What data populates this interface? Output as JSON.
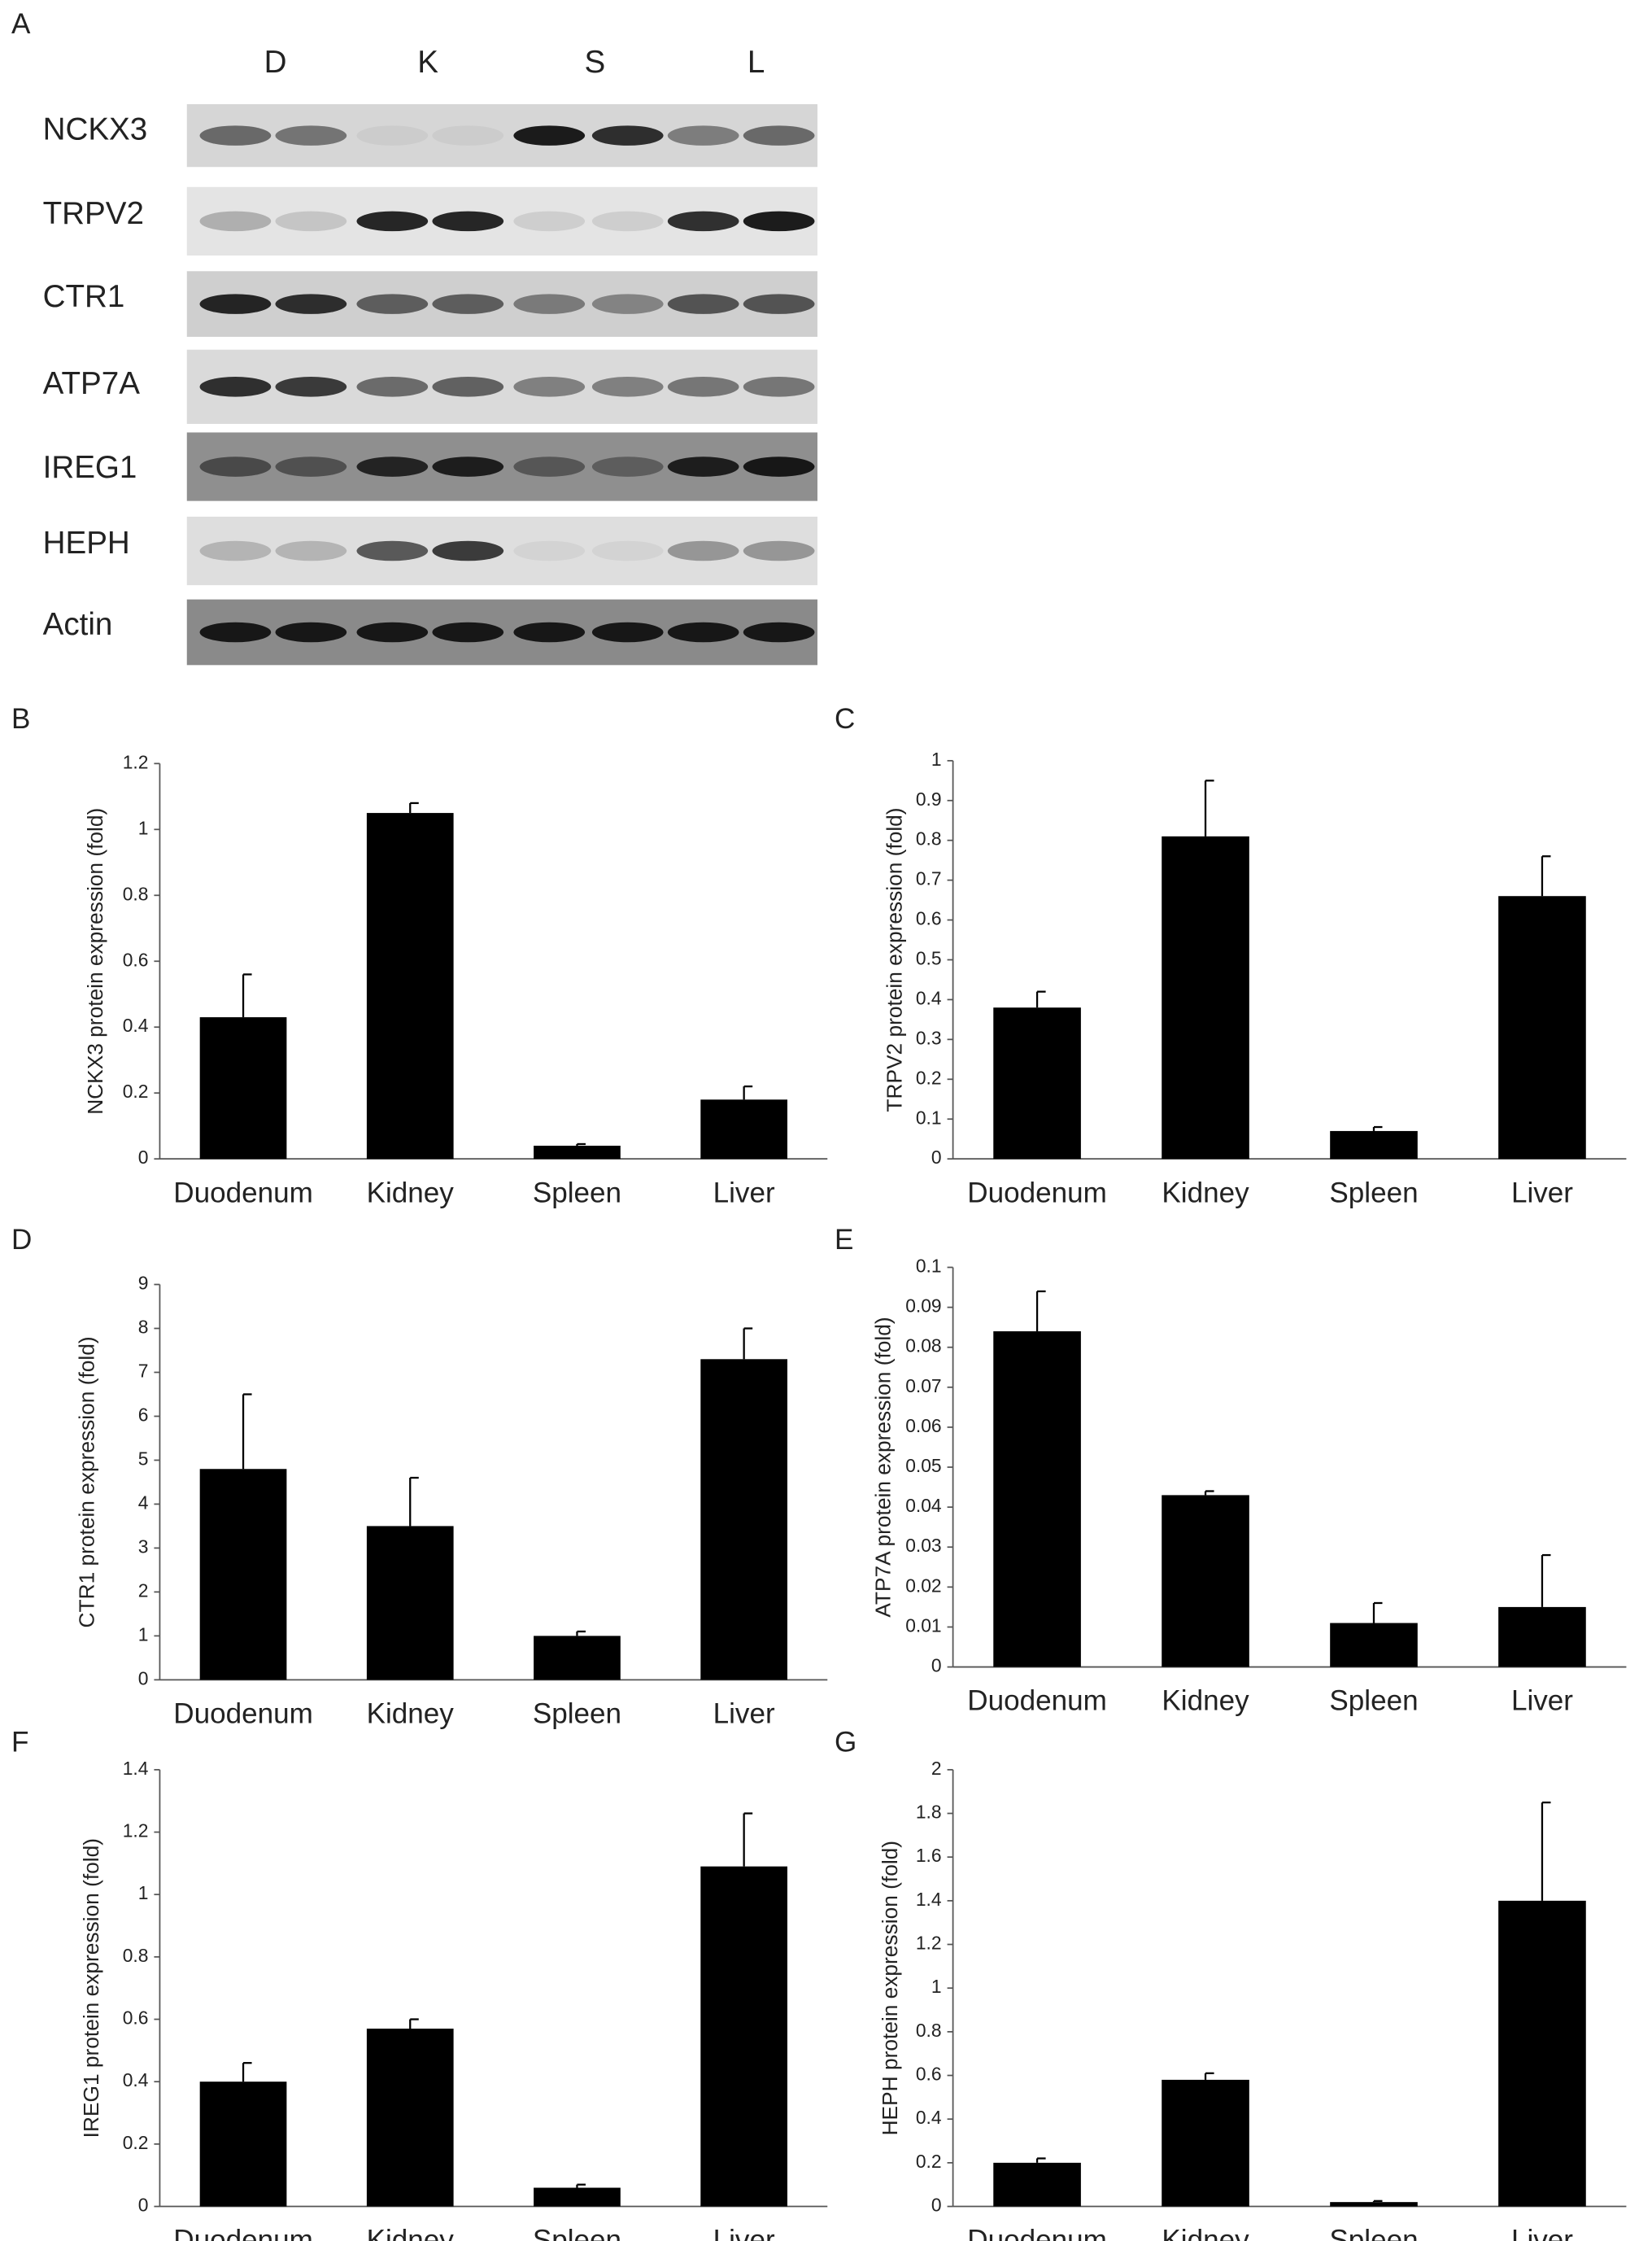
{
  "blot": {
    "panel": "A",
    "lanes": [
      "D",
      "K",
      "S",
      "L"
    ],
    "proteins": [
      "NCKX3",
      "TRPV2",
      "CTR1",
      "ATP7A",
      "IREG1",
      "HEPH",
      "Actin"
    ]
  },
  "chart_data": [
    {
      "type": "bar",
      "panel": "B",
      "y_label": "NCKX3 protein expression (fold)",
      "categories": [
        "Duodenum",
        "Kidney",
        "Spleen",
        "Liver"
      ],
      "values": [
        0.43,
        1.05,
        0.04,
        0.18
      ],
      "errors": [
        0.13,
        0.03,
        0.005,
        0.04
      ],
      "color": "#000000",
      "ylim": [
        0,
        1.2
      ],
      "yticks": [
        0,
        0.2,
        0.4,
        0.6,
        0.8,
        1,
        1.2
      ]
    },
    {
      "type": "bar",
      "panel": "C",
      "y_label": "TRPV2 protein expression (fold)",
      "categories": [
        "Duodenum",
        "Kidney",
        "Spleen",
        "Liver"
      ],
      "values": [
        0.38,
        0.81,
        0.07,
        0.66
      ],
      "errors": [
        0.04,
        0.14,
        0.01,
        0.1
      ],
      "color": "#000000",
      "ylim": [
        0,
        1
      ],
      "yticks": [
        0,
        0.1,
        0.2,
        0.3,
        0.4,
        0.5,
        0.6,
        0.7,
        0.8,
        0.9,
        1
      ]
    },
    {
      "type": "bar",
      "panel": "D",
      "y_label": "CTR1 protein expression (fold)",
      "categories": [
        "Duodenum",
        "Kidney",
        "Spleen",
        "Liver"
      ],
      "values": [
        4.8,
        3.5,
        1.0,
        7.3
      ],
      "errors": [
        1.7,
        1.1,
        0.1,
        0.7
      ],
      "color": "#000000",
      "ylim": [
        0,
        9
      ],
      "yticks": [
        0,
        1,
        2,
        3,
        4,
        5,
        6,
        7,
        8,
        9
      ]
    },
    {
      "type": "bar",
      "panel": "E",
      "y_label": "ATP7A protein expression (fold)",
      "categories": [
        "Duodenum",
        "Kidney",
        "Spleen",
        "Liver"
      ],
      "values": [
        0.084,
        0.043,
        0.011,
        0.015
      ],
      "errors": [
        0.01,
        0.001,
        0.005,
        0.013
      ],
      "color": "#000000",
      "ylim": [
        0,
        0.1
      ],
      "yticks": [
        0,
        0.01,
        0.02,
        0.03,
        0.04,
        0.05,
        0.06,
        0.07,
        0.08,
        0.09,
        0.1
      ]
    },
    {
      "type": "bar",
      "panel": "F",
      "y_label": "IREG1 protein expression (fold)",
      "categories": [
        "Duodenum",
        "Kidney",
        "Spleen",
        "Liver"
      ],
      "values": [
        0.4,
        0.57,
        0.06,
        1.09
      ],
      "errors": [
        0.06,
        0.03,
        0.01,
        0.17
      ],
      "color": "#000000",
      "ylim": [
        0,
        1.4
      ],
      "yticks": [
        0,
        0.2,
        0.4,
        0.6,
        0.8,
        1,
        1.2,
        1.4
      ]
    },
    {
      "type": "bar",
      "panel": "G",
      "y_label": "HEPH protein expression (fold)",
      "categories": [
        "Duodenum",
        "Kidney",
        "Spleen",
        "Liver"
      ],
      "values": [
        0.2,
        0.58,
        0.02,
        1.4
      ],
      "errors": [
        0.02,
        0.03,
        0.005,
        0.45
      ],
      "color": "#000000",
      "ylim": [
        0,
        2
      ],
      "yticks": [
        0,
        0.2,
        0.4,
        0.6,
        0.8,
        1,
        1.2,
        1.4,
        1.6,
        1.8,
        2
      ]
    }
  ]
}
